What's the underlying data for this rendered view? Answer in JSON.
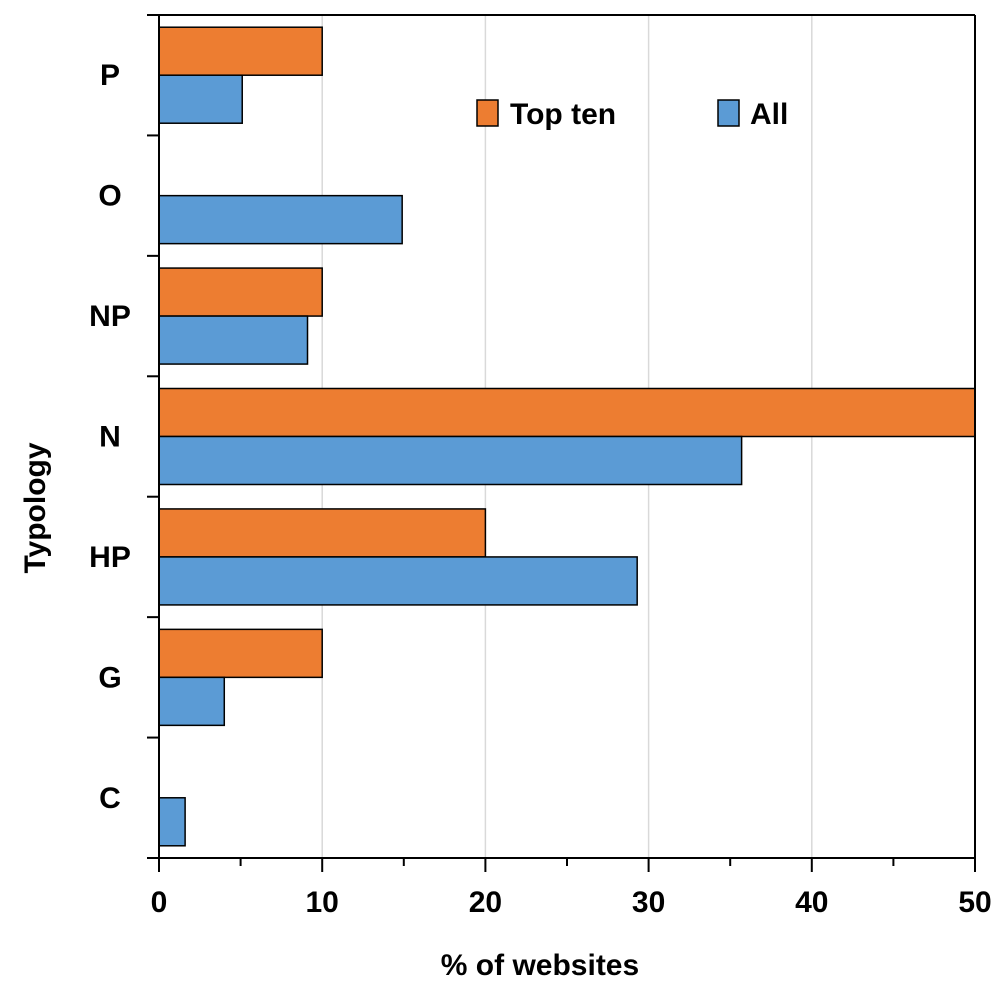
{
  "chart_data": {
    "type": "bar",
    "orientation": "horizontal",
    "categories": [
      "P",
      "O",
      "NP",
      "N",
      "HP",
      "G",
      "C"
    ],
    "series": [
      {
        "name": "Top ten",
        "color": "#ED7D31",
        "values": [
          10,
          0,
          10,
          50,
          20,
          10,
          0
        ]
      },
      {
        "name": "All",
        "color": "#5B9BD5",
        "values": [
          5.1,
          14.9,
          9.1,
          35.7,
          29.3,
          4.0,
          1.6
        ]
      }
    ],
    "xlabel": "% of websites",
    "ylabel": "Typology",
    "xlim": [
      0,
      50
    ],
    "xticks": [
      0,
      10,
      20,
      30,
      40,
      50
    ],
    "grid": "vertical",
    "legend": "top-right"
  }
}
